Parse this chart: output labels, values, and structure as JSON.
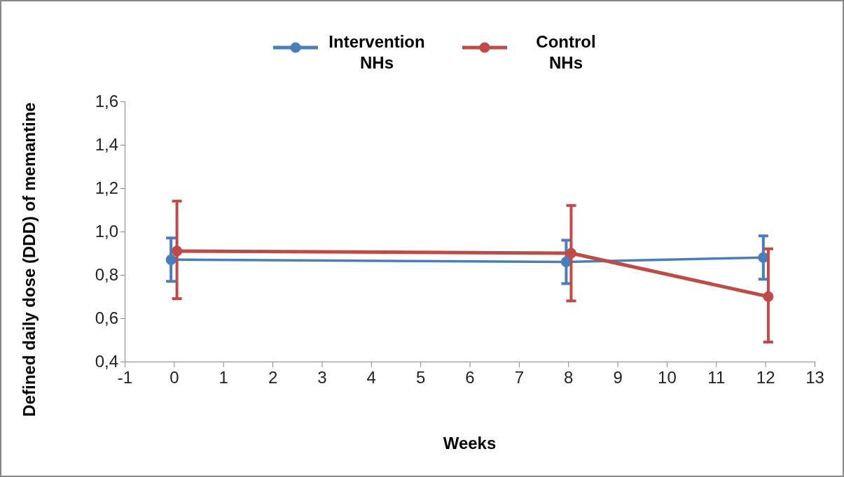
{
  "chart_data": {
    "type": "line",
    "xlabel": "Weeks",
    "ylabel": "Defined daily dose (DDD) of memantine",
    "xlim": [
      -1,
      13
    ],
    "xticks": [
      -1,
      0,
      1,
      2,
      3,
      4,
      5,
      6,
      7,
      8,
      9,
      10,
      11,
      12,
      13
    ],
    "ylim": [
      0.4,
      1.6
    ],
    "yticks": [
      {
        "value": 0.4,
        "label": "0,4"
      },
      {
        "value": 0.6,
        "label": "0,6"
      },
      {
        "value": 0.8,
        "label": "0,8"
      },
      {
        "value": 1.0,
        "label": "1,0"
      },
      {
        "value": 1.2,
        "label": "1,2"
      },
      {
        "value": 1.4,
        "label": "1,4"
      },
      {
        "value": 1.6,
        "label": "1,6"
      }
    ],
    "grid": false,
    "legend": "top",
    "marker": "circle",
    "line_style": "solid",
    "series": [
      {
        "name": "Intervention NHs",
        "color": "#4a7ebb",
        "x": [
          -0.06,
          7.96,
          11.96
        ],
        "values": [
          0.87,
          0.86,
          0.88
        ],
        "errors": [
          [
            0.77,
            0.97
          ],
          [
            0.76,
            0.96
          ],
          [
            0.78,
            0.98
          ]
        ]
      },
      {
        "name": "Control NHs",
        "color": "#be4b48",
        "x": [
          0.06,
          8.06,
          12.06
        ],
        "values": [
          0.91,
          0.9,
          0.7
        ],
        "errors": [
          [
            0.69,
            1.14
          ],
          [
            0.68,
            1.12
          ],
          [
            0.49,
            0.92
          ]
        ]
      }
    ]
  }
}
